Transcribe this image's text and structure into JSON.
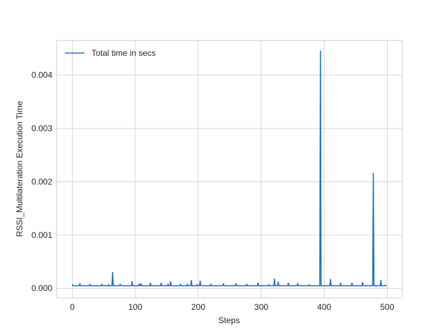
{
  "chart_data": {
    "type": "line",
    "title": "",
    "xlabel": "Steps",
    "ylabel": "RSSI_Multilateration Execution Time",
    "xlim": [
      -25,
      524
    ],
    "ylim": [
      -0.00018,
      0.00465
    ],
    "xticks": [
      0,
      100,
      200,
      300,
      400,
      500
    ],
    "xtick_labels": [
      "0",
      "100",
      "200",
      "300",
      "400",
      "500"
    ],
    "yticks": [
      0.0,
      0.001,
      0.002,
      0.003,
      0.004
    ],
    "ytick_labels": [
      "0.000",
      "0.001",
      "0.002",
      "0.003",
      "0.004"
    ],
    "grid": true,
    "legend_position": "top-left",
    "colors": {
      "series": "#1f77b4",
      "grid": "#cccccc",
      "frame": "#cccccc"
    },
    "baseline": 5e-05,
    "n_points": 500,
    "spikes": [
      [
        0,
        8e-05
      ],
      [
        12,
        9e-05
      ],
      [
        28,
        8e-05
      ],
      [
        47,
        8e-05
      ],
      [
        58,
        7e-05
      ],
      [
        64,
        0.0003
      ],
      [
        76,
        8e-05
      ],
      [
        95,
        0.00013
      ],
      [
        106,
        8e-05
      ],
      [
        109,
        9e-05
      ],
      [
        124,
        0.0001
      ],
      [
        141,
        0.0001
      ],
      [
        152,
        8e-05
      ],
      [
        156,
        0.00013
      ],
      [
        172,
        8e-05
      ],
      [
        183,
        8e-05
      ],
      [
        189,
        0.00015
      ],
      [
        198,
        7e-05
      ],
      [
        203,
        0.00014
      ],
      [
        220,
        8e-05
      ],
      [
        240,
        9e-05
      ],
      [
        260,
        9e-05
      ],
      [
        277,
        8e-05
      ],
      [
        295,
        0.0001
      ],
      [
        312,
        7e-05
      ],
      [
        321,
        0.00018
      ],
      [
        327,
        0.00012
      ],
      [
        343,
        0.0001
      ],
      [
        358,
        9e-05
      ],
      [
        376,
        7e-05
      ],
      [
        394,
        0.00445
      ],
      [
        410,
        0.00017
      ],
      [
        426,
        0.0001
      ],
      [
        444,
        0.0001
      ],
      [
        461,
        0.00011
      ],
      [
        478,
        0.00216
      ],
      [
        490,
        0.00015
      ],
      [
        497,
        6e-05
      ]
    ],
    "series": [
      {
        "name": "Total time in secs",
        "style": "line"
      }
    ]
  }
}
